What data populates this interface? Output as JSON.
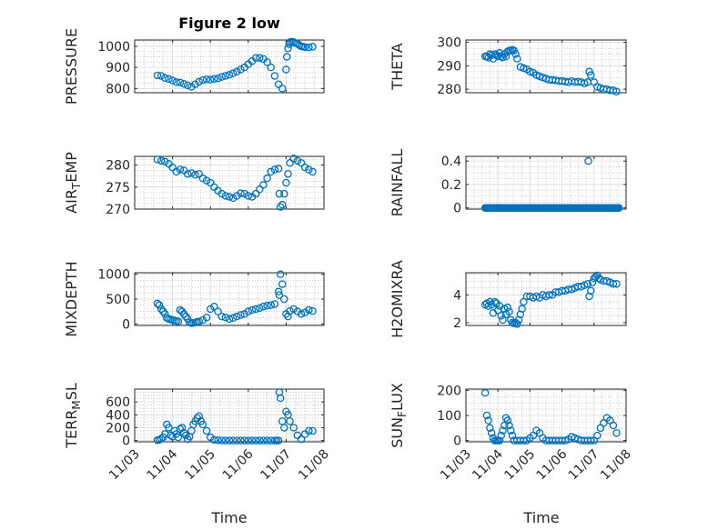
{
  "figure_title": "Figure 2 low",
  "colors": {
    "marker": "#0072BD",
    "axis": "#262626",
    "grid": "#b0b0b0"
  },
  "chart_data": [
    {
      "type": "scatter",
      "ylabel": "PRESSURE",
      "ylabel_parts": [
        {
          "t": "PRESSURE"
        }
      ],
      "ylim": [
        780,
        1030
      ],
      "yticks": [
        800,
        900,
        1000
      ],
      "yticklabels": [
        "800",
        "900",
        "1000"
      ],
      "xlim": [
        0,
        5
      ],
      "grid": true,
      "minor_grid": true,
      "x": [
        0.6,
        0.7,
        0.8,
        0.9,
        1.0,
        1.1,
        1.2,
        1.3,
        1.4,
        1.5,
        1.6,
        1.7,
        1.8,
        1.9,
        2.0,
        2.1,
        2.2,
        2.3,
        2.4,
        2.5,
        2.6,
        2.7,
        2.8,
        2.9,
        3.0,
        3.1,
        3.2,
        3.3,
        3.4,
        3.5,
        3.6,
        3.7,
        3.8,
        3.9,
        4.0,
        4.02,
        4.05,
        4.08,
        4.1,
        4.15,
        4.2,
        4.25,
        4.3,
        4.35,
        4.4,
        4.45,
        4.5,
        4.6,
        4.7
      ],
      "y": [
        862,
        860,
        850,
        845,
        838,
        830,
        828,
        822,
        815,
        808,
        820,
        832,
        840,
        843,
        842,
        845,
        848,
        855,
        860,
        865,
        872,
        880,
        890,
        900,
        915,
        930,
        945,
        945,
        940,
        925,
        900,
        860,
        820,
        800,
        890,
        950,
        990,
        1010,
        1020,
        1022,
        1020,
        1015,
        1012,
        1005,
        1000,
        998,
        996,
        995,
        998
      ]
    },
    {
      "type": "scatter",
      "ylabel": "THETA",
      "ylabel_parts": [
        {
          "t": "THETA"
        }
      ],
      "ylim": [
        278.5,
        301
      ],
      "yticks": [
        280,
        290,
        300
      ],
      "yticklabels": [
        "280",
        "290",
        "300"
      ],
      "xlim": [
        0,
        5
      ],
      "grid": true,
      "minor_grid": true,
      "x": [
        0.6,
        0.65,
        0.7,
        0.75,
        0.8,
        0.85,
        0.9,
        0.95,
        1.0,
        1.05,
        1.1,
        1.15,
        1.2,
        1.25,
        1.3,
        1.35,
        1.4,
        1.45,
        1.5,
        1.55,
        1.6,
        1.7,
        1.8,
        1.9,
        2.0,
        2.1,
        2.2,
        2.3,
        2.4,
        2.5,
        2.6,
        2.7,
        2.8,
        2.9,
        3.0,
        3.1,
        3.2,
        3.3,
        3.4,
        3.5,
        3.6,
        3.7,
        3.8,
        3.85,
        3.9,
        4.0,
        4.1,
        4.2,
        4.3,
        4.4,
        4.5,
        4.6,
        4.7
      ],
      "y": [
        294,
        294,
        293.5,
        295,
        294.5,
        293,
        295,
        294.5,
        294,
        295.5,
        294,
        293.5,
        295,
        294,
        296,
        296.5,
        296.5,
        296.8,
        296.5,
        295,
        293,
        289.5,
        289,
        288.5,
        287.5,
        287,
        286,
        285.5,
        285,
        284.5,
        284,
        284,
        283.8,
        283.5,
        283.5,
        283.2,
        283,
        283.5,
        283,
        283.2,
        283,
        282.5,
        283,
        287.5,
        286,
        283,
        281,
        280.5,
        280,
        280,
        279.5,
        279.5,
        279
      ]
    },
    {
      "type": "scatter",
      "ylabel": "AIR_TEMP",
      "ylabel_parts": [
        {
          "t": "AIR"
        },
        {
          "t": "T",
          "sub": true
        },
        {
          "t": "EMP"
        }
      ],
      "ylim": [
        270,
        282
      ],
      "yticks": [
        270,
        275,
        280
      ],
      "yticklabels": [
        "270",
        "275",
        "280"
      ],
      "xlim": [
        0,
        5
      ],
      "grid": true,
      "minor_grid": true,
      "x": [
        0.6,
        0.7,
        0.8,
        0.9,
        1.0,
        1.1,
        1.2,
        1.3,
        1.4,
        1.5,
        1.6,
        1.7,
        1.8,
        1.9,
        2.0,
        2.1,
        2.2,
        2.3,
        2.4,
        2.5,
        2.6,
        2.7,
        2.8,
        2.9,
        3.0,
        3.1,
        3.2,
        3.3,
        3.4,
        3.5,
        3.6,
        3.7,
        3.8,
        3.82,
        3.85,
        3.9,
        3.95,
        4.0,
        4.05,
        4.1,
        4.2,
        4.3,
        4.4,
        4.5,
        4.6,
        4.7
      ],
      "y": [
        281.3,
        281,
        280.8,
        280.3,
        279.5,
        278.5,
        279,
        278.8,
        278,
        278.2,
        277.8,
        278,
        277,
        276.5,
        276,
        275,
        274.2,
        273.5,
        273,
        272.8,
        272.5,
        273,
        273.6,
        273.5,
        273,
        272.8,
        273.5,
        274.5,
        275.5,
        277,
        278.5,
        279,
        279.2,
        273.5,
        270.5,
        271,
        273.5,
        276,
        278,
        280.5,
        281.5,
        281,
        280.5,
        279.5,
        279,
        278.5
      ]
    },
    {
      "type": "scatter",
      "ylabel": "RAINFALL",
      "ylabel_parts": [
        {
          "t": "RAINFALL"
        }
      ],
      "ylim": [
        -0.01,
        0.44
      ],
      "yticks": [
        0,
        0.2,
        0.4
      ],
      "yticklabels": [
        "0",
        "0.2",
        "0.4"
      ],
      "xlim": [
        0,
        5
      ],
      "grid": true,
      "minor_grid": true,
      "x_range": [
        0.6,
        4.78
      ],
      "x_step": 0.025,
      "y_const": 0,
      "x": [
        3.82
      ],
      "y": [
        0.4
      ]
    },
    {
      "type": "scatter",
      "ylabel": "MIXDEPTH",
      "ylabel_parts": [
        {
          "t": "MIXDEPTH"
        }
      ],
      "ylim": [
        -30,
        1030
      ],
      "yticks": [
        0,
        500,
        1000
      ],
      "yticklabels": [
        "0",
        "500",
        "1000"
      ],
      "xlim": [
        0,
        5
      ],
      "grid": true,
      "minor_grid": true,
      "x": [
        0.6,
        0.65,
        0.7,
        0.75,
        0.8,
        0.85,
        0.9,
        0.95,
        1.0,
        1.05,
        1.1,
        1.15,
        1.2,
        1.25,
        1.3,
        1.35,
        1.4,
        1.45,
        1.5,
        1.55,
        1.6,
        1.65,
        1.7,
        1.8,
        1.9,
        2.0,
        2.1,
        2.2,
        2.3,
        2.4,
        2.5,
        2.6,
        2.7,
        2.8,
        2.9,
        3.0,
        3.1,
        3.2,
        3.3,
        3.4,
        3.5,
        3.6,
        3.7,
        3.8,
        3.82,
        3.85,
        3.9,
        3.95,
        4.0,
        4.05,
        4.1,
        4.2,
        4.3,
        4.4,
        4.5,
        4.6,
        4.7
      ],
      "y": [
        410,
        380,
        300,
        250,
        200,
        120,
        100,
        90,
        80,
        70,
        60,
        50,
        280,
        250,
        200,
        150,
        100,
        30,
        15,
        20,
        30,
        40,
        50,
        80,
        130,
        300,
        350,
        250,
        150,
        130,
        100,
        120,
        150,
        180,
        200,
        250,
        280,
        300,
        320,
        350,
        370,
        380,
        400,
        650,
        580,
        1000,
        800,
        500,
        200,
        150,
        260,
        300,
        250,
        200,
        230,
        280,
        260
      ]
    },
    {
      "type": "scatter",
      "ylabel": "H2OMIXRA",
      "ylabel_parts": [
        {
          "t": "H2OMIXRA"
        }
      ],
      "ylim": [
        1.8,
        5.6
      ],
      "yticks": [
        2,
        4
      ],
      "yticklabels": [
        "2",
        "4"
      ],
      "xlim": [
        0,
        5
      ],
      "grid": true,
      "minor_grid": true,
      "x": [
        0.6,
        0.65,
        0.7,
        0.75,
        0.8,
        0.85,
        0.9,
        0.95,
        1.0,
        1.05,
        1.1,
        1.15,
        1.2,
        1.25,
        1.3,
        1.35,
        1.4,
        1.45,
        1.5,
        1.55,
        1.6,
        1.65,
        1.7,
        1.75,
        1.8,
        1.9,
        2.0,
        2.1,
        2.2,
        2.3,
        2.4,
        2.5,
        2.6,
        2.7,
        2.8,
        2.9,
        3.0,
        3.1,
        3.2,
        3.3,
        3.4,
        3.5,
        3.6,
        3.7,
        3.8,
        3.85,
        3.9,
        3.95,
        4.0,
        4.05,
        4.1,
        4.15,
        4.2,
        4.3,
        4.4,
        4.5,
        4.6,
        4.7
      ],
      "y": [
        3.3,
        3.4,
        3.2,
        3.5,
        3.3,
        2.7,
        3.5,
        3.4,
        2.9,
        3.2,
        2.5,
        2.2,
        3.0,
        2.6,
        3.1,
        2.8,
        2.2,
        2.0,
        1.95,
        2.0,
        1.9,
        2.2,
        2.6,
        3.0,
        3.5,
        3.9,
        3.9,
        3.8,
        3.9,
        3.8,
        4.0,
        3.9,
        4.0,
        4.0,
        4.2,
        4.2,
        4.3,
        4.3,
        4.4,
        4.4,
        4.5,
        4.6,
        4.6,
        4.7,
        4.8,
        3.9,
        4.3,
        4.9,
        5.2,
        5.3,
        5.4,
        5.2,
        5.1,
        5.0,
        5.0,
        4.9,
        4.8,
        4.8
      ]
    },
    {
      "type": "scatter",
      "ylabel": "TERR_MSL",
      "ylabel_parts": [
        {
          "t": "TERR"
        },
        {
          "t": "M",
          "sub": true
        },
        {
          "t": "SL"
        }
      ],
      "ylim": [
        -20,
        800
      ],
      "yticks": [
        0,
        200,
        400,
        600
      ],
      "yticklabels": [
        "0",
        "200",
        "400",
        "600"
      ],
      "xlim": [
        0,
        5
      ],
      "grid": true,
      "minor_grid": true,
      "x": [
        0.6,
        0.65,
        0.7,
        0.75,
        0.8,
        0.85,
        0.9,
        0.95,
        1.0,
        1.05,
        1.1,
        1.15,
        1.2,
        1.25,
        1.3,
        1.35,
        1.4,
        1.45,
        1.5,
        1.55,
        1.6,
        1.65,
        1.7,
        1.75,
        1.8,
        1.9,
        2.0,
        2.1,
        2.2,
        2.3,
        2.4,
        2.5,
        2.6,
        2.7,
        2.8,
        2.9,
        3.0,
        3.1,
        3.2,
        3.3,
        3.4,
        3.5,
        3.6,
        3.7,
        3.75,
        3.8,
        3.82,
        3.85,
        3.9,
        3.95,
        4.0,
        4.05,
        4.1,
        4.2,
        4.3,
        4.4,
        4.5,
        4.6,
        4.7
      ],
      "y": [
        5,
        10,
        30,
        50,
        100,
        250,
        200,
        80,
        60,
        150,
        100,
        50,
        180,
        200,
        120,
        80,
        20,
        60,
        150,
        250,
        300,
        350,
        380,
        300,
        250,
        150,
        50,
        10,
        5,
        0,
        0,
        0,
        0,
        0,
        0,
        0,
        0,
        0,
        0,
        0,
        0,
        0,
        0,
        0,
        0,
        0,
        750,
        660,
        300,
        200,
        450,
        400,
        300,
        200,
        80,
        20,
        100,
        150,
        150
      ]
    },
    {
      "type": "scatter",
      "ylabel": "SUN_FLUX",
      "ylabel_parts": [
        {
          "t": "SUN"
        },
        {
          "t": "F",
          "sub": true
        },
        {
          "t": "LUX"
        }
      ],
      "ylim": [
        -5,
        205
      ],
      "yticks": [
        0,
        100,
        200
      ],
      "yticklabels": [
        "0",
        "100",
        "200"
      ],
      "xlim": [
        0,
        5
      ],
      "grid": true,
      "minor_grid": true,
      "x": [
        0.6,
        0.65,
        0.7,
        0.75,
        0.8,
        0.85,
        0.9,
        0.95,
        1.0,
        1.05,
        1.1,
        1.15,
        1.2,
        1.25,
        1.3,
        1.35,
        1.4,
        1.45,
        1.5,
        1.6,
        1.7,
        1.8,
        1.9,
        2.0,
        2.1,
        2.2,
        2.3,
        2.4,
        2.5,
        2.6,
        2.7,
        2.8,
        2.9,
        3.0,
        3.1,
        3.2,
        3.3,
        3.4,
        3.5,
        3.6,
        3.7,
        3.8,
        3.9,
        4.0,
        4.1,
        4.2,
        4.3,
        4.4,
        4.5,
        4.6,
        4.7
      ],
      "y": [
        190,
        100,
        80,
        50,
        30,
        10,
        0,
        0,
        0,
        0,
        20,
        40,
        60,
        90,
        80,
        60,
        40,
        20,
        0,
        0,
        0,
        0,
        0,
        10,
        20,
        40,
        30,
        10,
        0,
        0,
        0,
        0,
        0,
        0,
        0,
        5,
        15,
        10,
        5,
        0,
        0,
        0,
        0,
        0,
        20,
        50,
        70,
        90,
        80,
        60,
        30
      ]
    }
  ],
  "x_axis": {
    "xticks": [
      0,
      1,
      2,
      3,
      4,
      5
    ],
    "xticklabels": [
      "11/03",
      "11/04",
      "11/05",
      "11/06",
      "11/07",
      "11/08"
    ],
    "xlabel": "Time"
  }
}
